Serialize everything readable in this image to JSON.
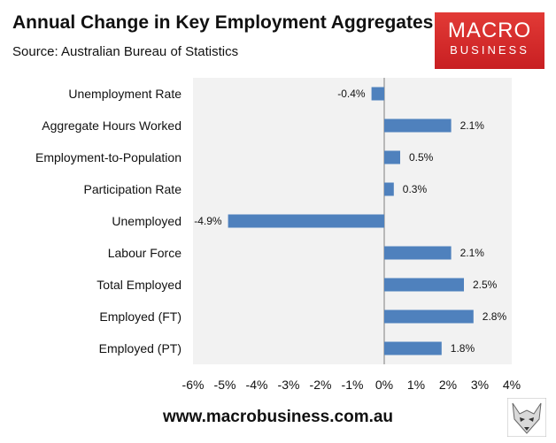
{
  "header": {
    "title": "Annual Change in Key Employment Aggregates",
    "source": "Source: Australian Bureau of Statistics"
  },
  "logo": {
    "line1": "MACRO",
    "line2": "BUSINESS"
  },
  "footer": {
    "url": "www.macrobusiness.com.au"
  },
  "colors": {
    "bar": "#4f81bd",
    "plot_bg": "#f2f2f2",
    "logo_red": "#d32a2a"
  },
  "icons": {
    "logo_mark": "fox-head-icon"
  },
  "chart_data": {
    "type": "bar",
    "orientation": "horizontal",
    "title": "Annual Change in Key Employment Aggregates",
    "categories": [
      "Unemployment Rate",
      "Aggregate Hours Worked",
      "Employment-to-Population",
      "Participation Rate",
      "Unemployed",
      "Labour Force",
      "Total Employed",
      "Employed (FT)",
      "Employed (PT)"
    ],
    "values": [
      -0.4,
      2.1,
      0.5,
      0.3,
      -4.9,
      2.1,
      2.5,
      2.8,
      1.8
    ],
    "data_labels": [
      "-0.4%",
      "2.1%",
      "0.5%",
      "0.3%",
      "-4.9%",
      "2.1%",
      "2.5%",
      "2.8%",
      "1.8%"
    ],
    "xlim": [
      -6,
      4
    ],
    "xticks": [
      "-6%",
      "-5%",
      "-4%",
      "-3%",
      "-2%",
      "-1%",
      "0%",
      "1%",
      "2%",
      "3%",
      "4%"
    ],
    "xlabel": "",
    "ylabel": "",
    "grid": false,
    "legend": "none"
  }
}
